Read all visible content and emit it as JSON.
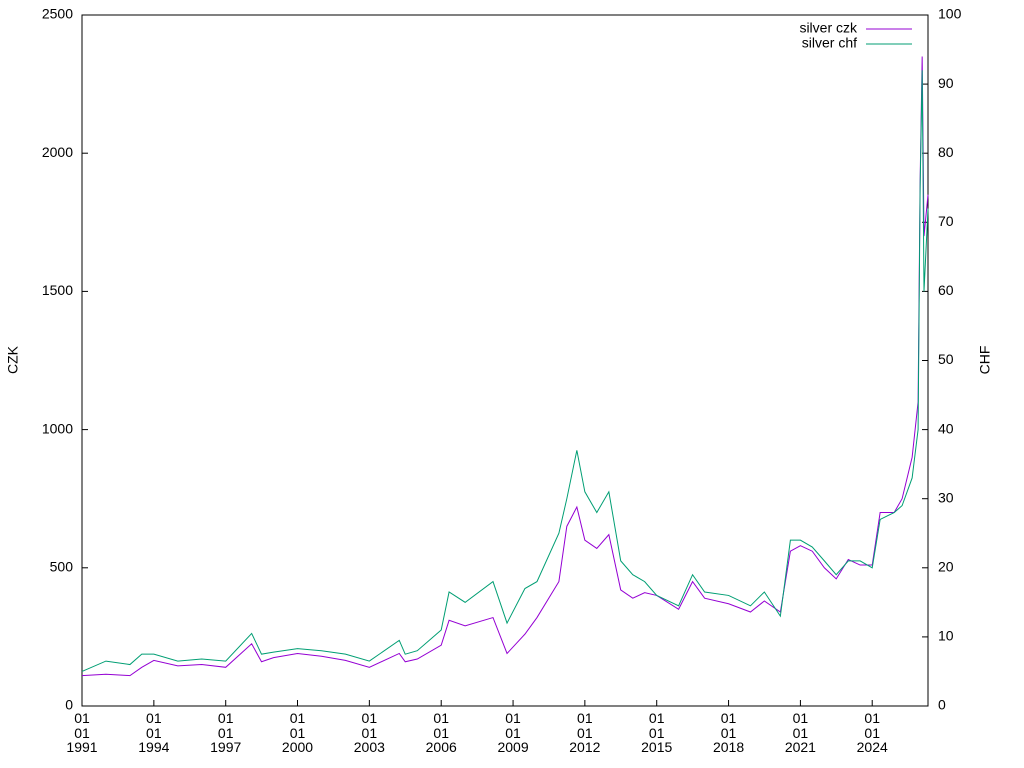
{
  "chart_data": {
    "type": "line",
    "x": [
      "1991-01-01",
      "1992-01-01",
      "1993-01-01",
      "1993-07-01",
      "1994-01-01",
      "1995-01-01",
      "1996-01-01",
      "1997-01-01",
      "1998-02-01",
      "1998-07-01",
      "1999-01-01",
      "2000-01-01",
      "2001-01-01",
      "2002-01-01",
      "2003-01-01",
      "2004-04-01",
      "2004-07-01",
      "2005-01-01",
      "2006-01-01",
      "2006-05-01",
      "2007-01-01",
      "2008-03-01",
      "2008-10-01",
      "2009-07-01",
      "2010-01-01",
      "2010-12-01",
      "2011-04-01",
      "2011-09-01",
      "2012-01-01",
      "2012-07-01",
      "2013-01-01",
      "2013-07-01",
      "2014-01-01",
      "2014-07-01",
      "2015-01-01",
      "2015-12-01",
      "2016-07-01",
      "2017-01-01",
      "2018-01-01",
      "2018-12-01",
      "2019-07-01",
      "2020-03-01",
      "2020-08-01",
      "2021-01-01",
      "2021-07-01",
      "2022-01-01",
      "2022-07-01",
      "2023-01-01",
      "2023-07-01",
      "2024-01-01",
      "2024-05-01",
      "2024-12-01",
      "2025-04-01",
      "2025-09-01",
      "2025-12-01",
      "2026-01-01",
      "2026-02-01",
      "2026-03-01",
      "2026-05-01"
    ],
    "series": [
      {
        "name": "silver czk",
        "color": "#9400d3",
        "values": [
          110,
          115,
          110,
          140,
          165,
          145,
          150,
          140,
          225,
          160,
          175,
          190,
          180,
          165,
          140,
          190,
          160,
          170,
          220,
          310,
          290,
          320,
          190,
          260,
          320,
          450,
          650,
          720,
          600,
          570,
          620,
          420,
          390,
          410,
          400,
          350,
          450,
          390,
          370,
          340,
          380,
          340,
          560,
          580,
          560,
          500,
          460,
          530,
          510,
          510,
          700,
          700,
          750,
          900,
          1100,
          1900,
          2350,
          1700,
          1850
        ]
      },
      {
        "name": "silver chf",
        "color": "#009e73",
        "axis": "y2",
        "values": [
          5,
          6.5,
          6,
          7.5,
          7.5,
          6.5,
          6.8,
          6.5,
          10.5,
          7.5,
          7.8,
          8.3,
          8,
          7.5,
          6.5,
          9.5,
          7.5,
          8,
          11,
          16.5,
          15,
          18,
          12,
          17,
          18,
          25,
          30,
          37,
          31,
          28,
          31,
          21,
          19,
          18,
          16,
          14.5,
          19,
          16.5,
          16,
          14.5,
          16.5,
          13,
          24,
          24,
          23,
          21,
          19,
          21,
          21,
          20,
          27,
          28,
          29,
          33,
          40,
          75,
          92,
          60,
          72
        ]
      }
    ],
    "ylabel": "CZK",
    "y2label": "CHF",
    "xlim": [
      "1991-01-01",
      "2026-05-01"
    ],
    "xticks": [
      {
        "value": "1991-01-01",
        "label": "01\n01\n1991"
      },
      {
        "value": "1994-01-01",
        "label": "01\n01\n1994"
      },
      {
        "value": "1997-01-01",
        "label": "01\n01\n1997"
      },
      {
        "value": "2000-01-01",
        "label": "01\n01\n2000"
      },
      {
        "value": "2003-01-01",
        "label": "01\n01\n2003"
      },
      {
        "value": "2006-01-01",
        "label": "01\n01\n2006"
      },
      {
        "value": "2009-01-01",
        "label": "01\n01\n2009"
      },
      {
        "value": "2012-01-01",
        "label": "01\n01\n2012"
      },
      {
        "value": "2015-01-01",
        "label": "01\n01\n2015"
      },
      {
        "value": "2018-01-01",
        "label": "01\n01\n2018"
      },
      {
        "value": "2021-01-01",
        "label": "01\n01\n2021"
      },
      {
        "value": "2024-01-01",
        "label": "01\n01\n2024"
      }
    ],
    "ylim": [
      0,
      2500
    ],
    "yticks": [
      0,
      500,
      1000,
      1500,
      2000,
      2500
    ],
    "y2lim": [
      0,
      100
    ],
    "y2ticks": [
      0,
      10,
      20,
      30,
      40,
      50,
      60,
      70,
      80,
      90,
      100
    ],
    "legend": "top-right"
  }
}
